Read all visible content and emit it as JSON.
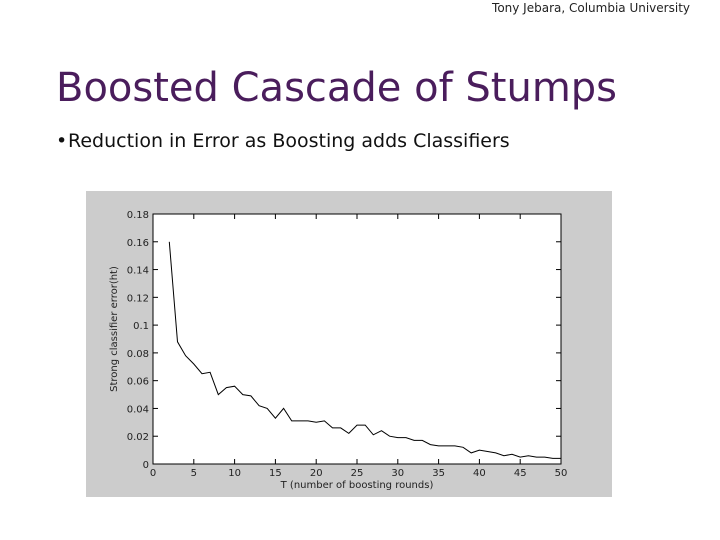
{
  "header": {
    "credit": "Tony Jebara, Columbia University",
    "title": "Boosted Cascade of Stumps",
    "bullet": "Reduction in Error as Boosting adds Classifiers"
  },
  "chart_data": {
    "type": "line",
    "xlabel": "T (number of boosting rounds)",
    "ylabel": "Strong classifier error(ht)",
    "x": [
      2,
      3,
      4,
      5,
      6,
      7,
      8,
      9,
      10,
      11,
      12,
      13,
      14,
      15,
      16,
      17,
      18,
      19,
      20,
      21,
      22,
      23,
      24,
      25,
      26,
      27,
      28,
      29,
      30,
      31,
      32,
      33,
      34,
      35,
      36,
      37,
      38,
      39,
      40,
      41,
      42,
      43,
      44,
      45,
      46,
      47,
      48,
      49,
      50
    ],
    "values": [
      0.16,
      0.088,
      0.078,
      0.072,
      0.065,
      0.066,
      0.05,
      0.055,
      0.056,
      0.05,
      0.049,
      0.042,
      0.04,
      0.033,
      0.04,
      0.031,
      0.031,
      0.031,
      0.03,
      0.031,
      0.026,
      0.026,
      0.022,
      0.028,
      0.028,
      0.021,
      0.024,
      0.02,
      0.019,
      0.019,
      0.017,
      0.017,
      0.014,
      0.013,
      0.013,
      0.013,
      0.012,
      0.008,
      0.01,
      0.009,
      0.008,
      0.006,
      0.007,
      0.005,
      0.006,
      0.005,
      0.005,
      0.004,
      0.004
    ],
    "color": "#000000",
    "xlim": [
      0,
      50
    ],
    "xticks": [
      0,
      5,
      10,
      15,
      20,
      25,
      30,
      35,
      40,
      45,
      50
    ],
    "ylim": [
      0,
      0.18
    ],
    "yticks": [
      0,
      0.02,
      0.04,
      0.06,
      0.08,
      0.1,
      0.12,
      0.14,
      0.16,
      0.18
    ]
  }
}
